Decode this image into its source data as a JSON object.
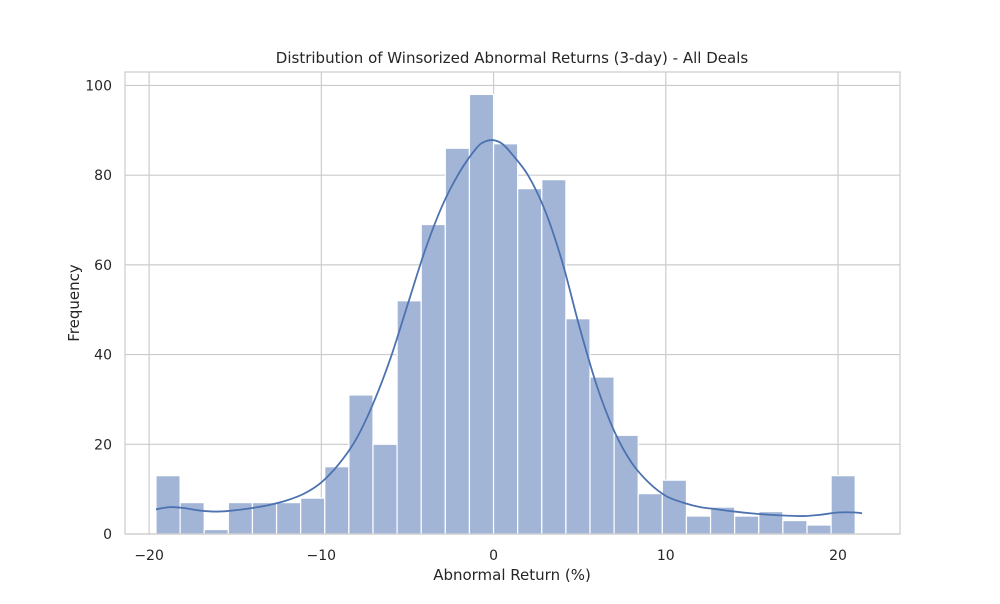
{
  "chart_data": {
    "type": "bar",
    "title": "Distribution of Winsorized Abnormal Returns (3-day) - All Deals",
    "xlabel": "Abnormal Return (%)",
    "ylabel": "Frequency",
    "xlim": [
      -21.4,
      23.6
    ],
    "ylim": [
      0,
      103
    ],
    "xticks": [
      -20,
      -10,
      0,
      10,
      20
    ],
    "xtick_labels": [
      "−20",
      "−10",
      "0",
      "10",
      "20"
    ],
    "yticks": [
      0,
      20,
      40,
      60,
      80,
      100
    ],
    "ytick_labels": [
      "0",
      "20",
      "40",
      "60",
      "80",
      "100"
    ],
    "grid": true,
    "legend": "none",
    "bins": {
      "start": -19.6,
      "width": 1.4,
      "counts": [
        13,
        7,
        1,
        7,
        7,
        7,
        8,
        15,
        31,
        20,
        52,
        69,
        86,
        98,
        87,
        77,
        79,
        48,
        35,
        22,
        9,
        12,
        4,
        6,
        4,
        5,
        3,
        2,
        13
      ]
    },
    "kde": {
      "x": [
        -19.6,
        -18.8,
        -18.0,
        -17.0,
        -16.0,
        -15.0,
        -14.0,
        -13.0,
        -12.0,
        -11.0,
        -10.0,
        -9.0,
        -8.0,
        -7.0,
        -6.0,
        -5.0,
        -4.0,
        -3.0,
        -2.0,
        -1.0,
        -0.5,
        0.0,
        0.5,
        1.0,
        2.0,
        3.0,
        4.0,
        5.0,
        6.0,
        7.0,
        8.0,
        9.0,
        10.0,
        11.0,
        12.0,
        13.0,
        14.0,
        15.0,
        16.0,
        17.0,
        18.0,
        19.0,
        20.0,
        21.0,
        21.4
      ],
      "y": [
        5.5,
        6.0,
        5.8,
        5.2,
        5.0,
        5.3,
        5.8,
        6.5,
        7.5,
        9.0,
        11.5,
        15.5,
        21.0,
        29.0,
        39.0,
        51.0,
        63.0,
        73.0,
        80.5,
        86.0,
        87.5,
        87.8,
        87.0,
        85.0,
        80.0,
        72.0,
        60.5,
        46.0,
        33.0,
        23.0,
        16.0,
        11.5,
        8.5,
        7.0,
        6.0,
        5.5,
        5.0,
        4.6,
        4.3,
        4.1,
        4.0,
        4.3,
        4.8,
        4.8,
        4.6
      ]
    },
    "colors": {
      "bar": "#a2b5d6",
      "kde": "#4c72b0"
    }
  }
}
